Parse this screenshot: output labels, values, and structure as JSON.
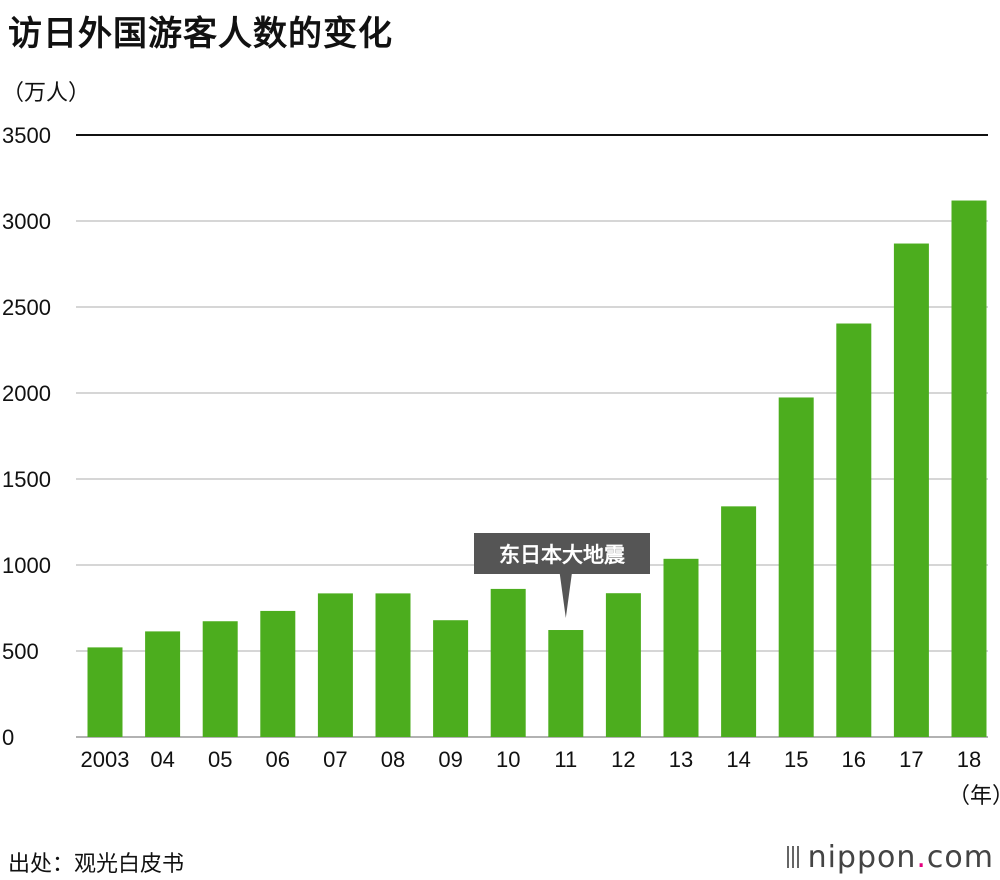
{
  "chart_data": {
    "type": "bar",
    "title": "访日外国游客人数的变化",
    "ylabel": "（万人）",
    "xlabel": "（年）",
    "ylim": [
      0,
      3500
    ],
    "yticks": [
      0,
      500,
      1000,
      1500,
      2000,
      2500,
      3000,
      3500
    ],
    "categories": [
      "2003",
      "04",
      "05",
      "06",
      "07",
      "08",
      "09",
      "10",
      "11",
      "12",
      "13",
      "14",
      "15",
      "16",
      "17",
      "18"
    ],
    "values": [
      521,
      614,
      673,
      733,
      835,
      835,
      679,
      861,
      622,
      836,
      1036,
      1341,
      1974,
      2404,
      2869,
      3119
    ],
    "bar_color": "#4cad1e",
    "annotation": {
      "text": "东日本大地震",
      "category": "11",
      "bg_color": "#555555"
    }
  },
  "footer": {
    "source": "出处：观光白皮书",
    "brand_main": "nippon",
    "brand_dot": ".",
    "brand_tld": "com"
  }
}
